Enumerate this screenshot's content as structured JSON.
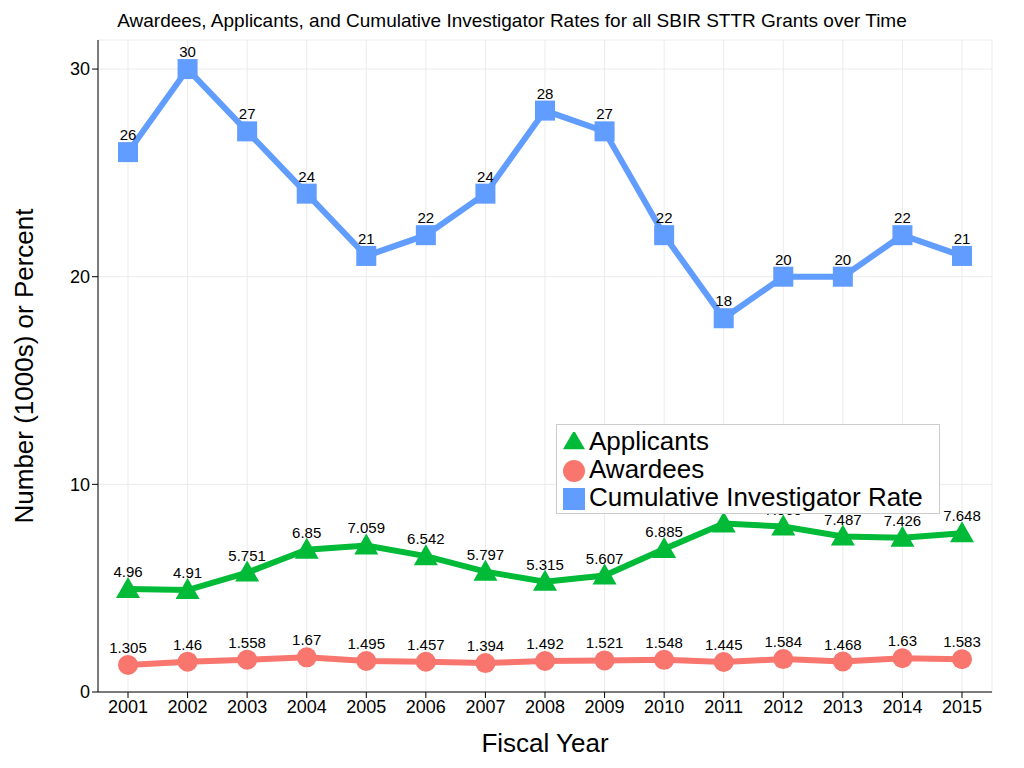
{
  "chart_data": {
    "type": "line",
    "title": "Awardees, Applicants, and Cumulative Investigator Rates for all SBIR STTR Grants over Time",
    "x_label": "Fiscal Year",
    "y_label": "Number (1000s) or Percent",
    "categories": [
      "2001",
      "2002",
      "2003",
      "2004",
      "2005",
      "2006",
      "2007",
      "2008",
      "2009",
      "2010",
      "2011",
      "2012",
      "2013",
      "2014",
      "2015"
    ],
    "series": [
      {
        "name": "Awardees",
        "color": "#F8766D",
        "marker": "circle",
        "values": [
          1.305,
          1.46,
          1.558,
          1.67,
          1.495,
          1.457,
          1.394,
          1.492,
          1.521,
          1.548,
          1.445,
          1.584,
          1.468,
          1.63,
          1.583
        ]
      },
      {
        "name": "Applicants",
        "color": "#00BA38",
        "marker": "triangle",
        "values": [
          4.96,
          4.91,
          5.751,
          6.85,
          7.059,
          6.542,
          5.797,
          5.315,
          5.607,
          6.885,
          8.114,
          7.969,
          7.487,
          7.426,
          7.648
        ]
      },
      {
        "name": "Cumulative Investigator Rate",
        "color": "#619CFF",
        "marker": "square",
        "values": [
          26,
          30,
          27,
          24,
          21,
          22,
          24,
          28,
          27,
          22,
          18,
          20,
          20,
          22,
          21
        ]
      }
    ],
    "ylim": [
      0,
      31.4
    ],
    "yticks": [
      0,
      10,
      20,
      30
    ],
    "grid": true,
    "legend": "right",
    "data_labels": true
  }
}
